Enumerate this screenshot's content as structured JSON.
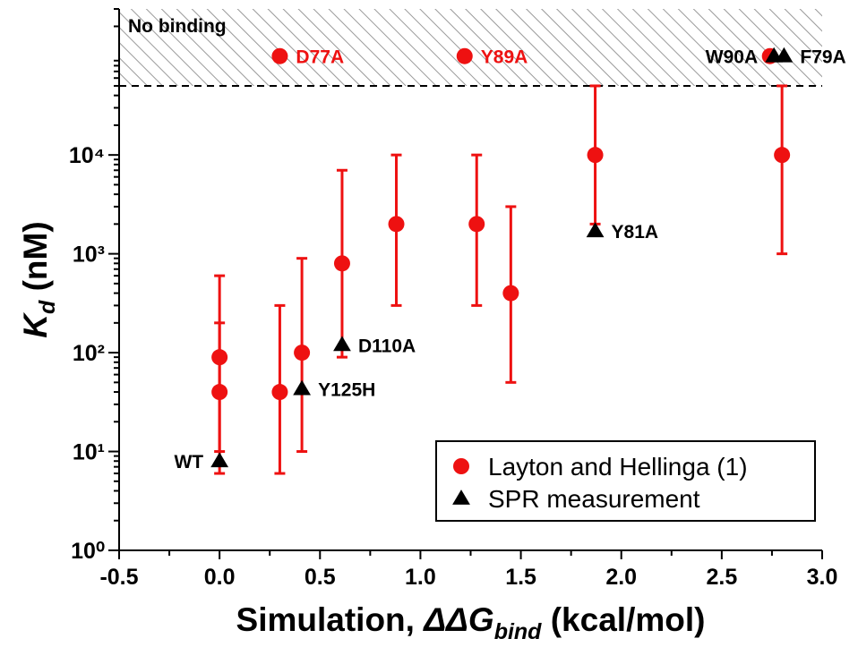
{
  "chart_data": {
    "type": "scatter",
    "xlabel": {
      "prefix": "Simulation, ",
      "symbol": "ΔΔG",
      "subscript": "bind",
      "unit": " (kcal/mol)"
    },
    "ylabel": {
      "symbol": "K",
      "subscript": "d",
      "unit": " (nM)"
    },
    "xlim": [
      -0.5,
      3.0
    ],
    "ylim": [
      1,
      300000
    ],
    "log_y": true,
    "xticks": [
      -0.5,
      {
        "value": 0,
        "label": "0.0"
      },
      0.5,
      {
        "value": 1,
        "label": "1.0"
      },
      1.5,
      {
        "value": 2,
        "label": "2.0"
      },
      2.5,
      {
        "value": 3,
        "label": "3.0"
      }
    ],
    "yticks": [
      {
        "value": 1,
        "label": "10⁰"
      },
      {
        "value": 10,
        "label": "10¹"
      },
      {
        "value": 100,
        "label": "10²"
      },
      {
        "value": 1000,
        "label": "10³"
      },
      {
        "value": 10000,
        "label": "10⁴"
      }
    ],
    "threshold": 50000,
    "region_label": "No binding",
    "legend": "lower right",
    "series": [
      {
        "name": "Layton and Hellinga (1)",
        "color": "#ee1111",
        "marker": "circle",
        "x": [
          0,
          0,
          0.3,
          0.41,
          0.61,
          0.88,
          1.28,
          1.45,
          1.87,
          2.8,
          0.3,
          1.22,
          2.74
        ],
        "values": [
          40,
          90,
          40,
          100,
          800,
          2000,
          2000,
          400,
          10000,
          10000,
          100000,
          100000,
          100000
        ],
        "y_lower": [
          6,
          10,
          6,
          10,
          90,
          300,
          300,
          50,
          2000,
          1000,
          null,
          null,
          null
        ],
        "y_upper": [
          200,
          600,
          300,
          900,
          7000,
          10000,
          10000,
          3000,
          50000,
          50000,
          null,
          null,
          null
        ],
        "point_labels": [
          null,
          null,
          null,
          null,
          null,
          null,
          null,
          null,
          null,
          null,
          "D77A",
          "Y89A",
          null
        ]
      },
      {
        "name": "SPR measurement",
        "color": "#000000",
        "marker": "triangle",
        "x": [
          0,
          0.41,
          0.61,
          1.87,
          2.76,
          2.81
        ],
        "values": [
          8,
          43,
          120,
          1700,
          100000,
          100000
        ],
        "point_labels": [
          "WT",
          "Y125H",
          "D110A",
          "Y81A",
          "W90A",
          "F79A"
        ]
      }
    ]
  }
}
